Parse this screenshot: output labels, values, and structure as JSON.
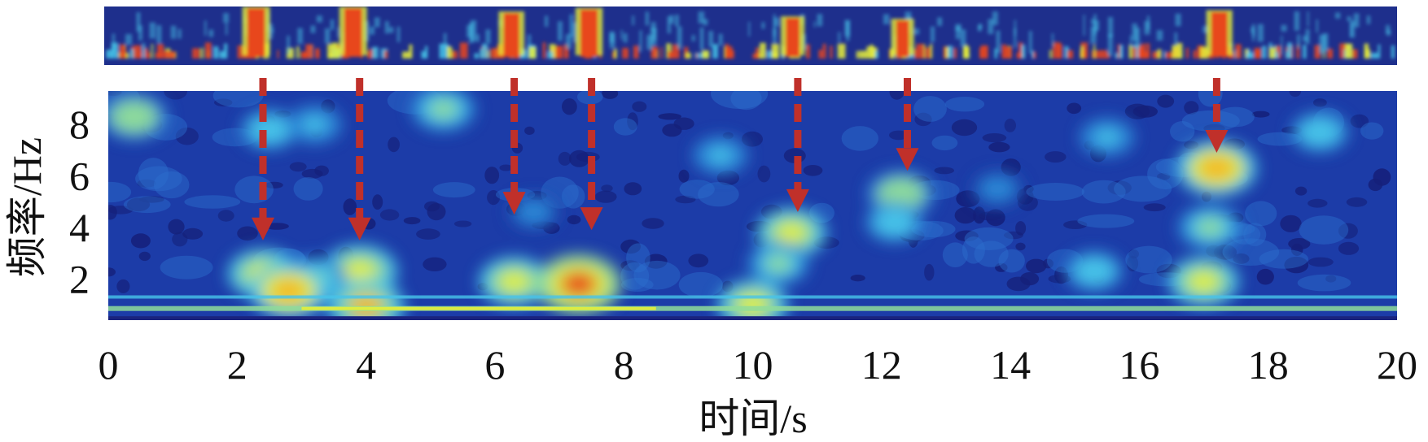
{
  "chart_data": {
    "type": "heatmap",
    "title": "",
    "xlabel": "时间/s",
    "ylabel": "频率/Hz",
    "xlim": [
      0,
      20
    ],
    "ylim": [
      0.4,
      9.3
    ],
    "x_ticks": [
      0,
      2,
      4,
      6,
      8,
      10,
      12,
      14,
      16,
      18,
      20
    ],
    "y_ticks": [
      2,
      4,
      6,
      8
    ],
    "colormap": [
      "#1a237e",
      "#1e4fb3",
      "#2c86d6",
      "#47c3e8",
      "#8fdc9a",
      "#e6ef3a",
      "#f6b726",
      "#e8461e",
      "#b1170c"
    ],
    "grid": false,
    "legend": "none",
    "strip": {
      "bursts_s": [
        2.35,
        3.85,
        6.3,
        7.5,
        10.65,
        12.35,
        17.25
      ],
      "strength": [
        1.0,
        1.0,
        0.8,
        0.95,
        0.6,
        0.5,
        0.85
      ]
    },
    "annotations": {
      "arrow_color": "#c0302a",
      "arrows": [
        {
          "t": 2.4,
          "f": 3.5
        },
        {
          "t": 3.9,
          "f": 3.5
        },
        {
          "t": 6.3,
          "f": 4.5
        },
        {
          "t": 7.5,
          "f": 3.9
        },
        {
          "t": 10.7,
          "f": 4.6
        },
        {
          "t": 12.4,
          "f": 6.2
        },
        {
          "t": 17.2,
          "f": 6.9
        }
      ]
    },
    "features": [
      {
        "t": 0.4,
        "f": 8.3,
        "level": 0.55
      },
      {
        "t": 5.2,
        "f": 8.6,
        "level": 0.5
      },
      {
        "t": 2.5,
        "f": 7.8,
        "level": 0.4
      },
      {
        "t": 3.2,
        "f": 8.0,
        "level": 0.35
      },
      {
        "t": 9.5,
        "f": 6.8,
        "level": 0.35
      },
      {
        "t": 15.5,
        "f": 7.5,
        "level": 0.35
      },
      {
        "t": 18.8,
        "f": 7.7,
        "level": 0.4
      },
      {
        "t": 13.8,
        "f": 5.5,
        "level": 0.3
      },
      {
        "t": 6.6,
        "f": 4.6,
        "level": 0.3
      },
      {
        "t": 12.3,
        "f": 5.3,
        "level": 0.55
      },
      {
        "t": 12.2,
        "f": 4.2,
        "level": 0.4
      },
      {
        "t": 17.2,
        "f": 6.3,
        "level": 0.75
      },
      {
        "t": 17.1,
        "f": 4.0,
        "level": 0.5
      },
      {
        "t": 10.6,
        "f": 3.8,
        "level": 0.6
      },
      {
        "t": 10.4,
        "f": 2.6,
        "level": 0.45
      },
      {
        "t": 2.4,
        "f": 2.2,
        "level": 0.6
      },
      {
        "t": 3.9,
        "f": 2.3,
        "level": 0.68
      },
      {
        "t": 3.2,
        "f": 2.0,
        "level": 0.5
      },
      {
        "t": 6.3,
        "f": 1.9,
        "level": 0.6
      },
      {
        "t": 7.3,
        "f": 1.8,
        "level": 0.82
      },
      {
        "t": 2.8,
        "f": 1.55,
        "level": 0.72
      },
      {
        "t": 17.0,
        "f": 1.9,
        "level": 0.6
      },
      {
        "t": 15.3,
        "f": 2.3,
        "level": 0.4
      },
      {
        "t": 4.0,
        "f": 0.95,
        "level": 0.7
      },
      {
        "t": 10.0,
        "f": 1.0,
        "level": 0.6
      }
    ]
  }
}
